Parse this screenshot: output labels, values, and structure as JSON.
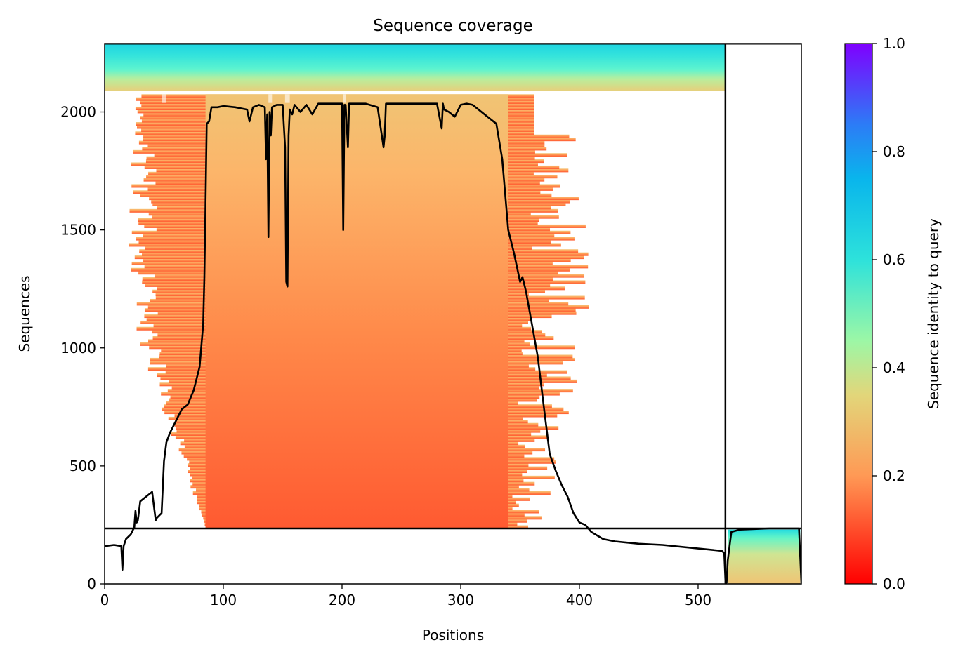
{
  "chart_data": {
    "type": "heatmap",
    "title": "Sequence coverage",
    "xlabel": "Positions",
    "ylabel": "Sequences",
    "xlim": [
      0,
      587
    ],
    "ylim": [
      0,
      2290
    ],
    "x_ticks": [
      0,
      100,
      200,
      300,
      400,
      500
    ],
    "y_ticks": [
      0,
      500,
      1000,
      1500,
      2000
    ],
    "colorbar": {
      "label": "Sequence identity to query",
      "colormap": "rainbow_r",
      "range": [
        0,
        1
      ],
      "ticks": [
        "0.0",
        "0.2",
        "0.4",
        "0.6",
        "0.8",
        "1.0"
      ]
    },
    "segment_boundary_x": 523,
    "segment_boundary_y": 235,
    "coverage_line": {
      "name": "coverage",
      "color": "#000000",
      "x": [
        0,
        8,
        14,
        15,
        16,
        18,
        22,
        25,
        26,
        27,
        28,
        30,
        35,
        40,
        43,
        44,
        48,
        50,
        52,
        55,
        60,
        65,
        70,
        75,
        80,
        83,
        84,
        85,
        86,
        88,
        90,
        95,
        100,
        110,
        120,
        122,
        125,
        130,
        135,
        136,
        137,
        138,
        139,
        140,
        141,
        145,
        150,
        152,
        153,
        154,
        155,
        156,
        158,
        160,
        165,
        170,
        175,
        180,
        190,
        200,
        201,
        202,
        203,
        205,
        206,
        210,
        220,
        230,
        235,
        236,
        237,
        240,
        250,
        260,
        270,
        280,
        284,
        285,
        286,
        290,
        295,
        300,
        305,
        310,
        320,
        330,
        335,
        340,
        345,
        350,
        352,
        355,
        360,
        365,
        370,
        375,
        380,
        385,
        390,
        395,
        400,
        405,
        410,
        420,
        430,
        450,
        470,
        500,
        520,
        522,
        523,
        524,
        525,
        528,
        535,
        560,
        585,
        587
      ],
      "y": [
        160,
        165,
        160,
        60,
        160,
        190,
        210,
        240,
        310,
        260,
        270,
        350,
        370,
        390,
        270,
        280,
        300,
        520,
        600,
        640,
        690,
        740,
        760,
        820,
        920,
        1100,
        1300,
        1600,
        1950,
        1960,
        2020,
        2020,
        2025,
        2020,
        2010,
        1960,
        2020,
        2030,
        2020,
        1800,
        1990,
        1470,
        2000,
        1900,
        2020,
        2030,
        2030,
        1850,
        1280,
        1260,
        1900,
        2010,
        1990,
        2030,
        2000,
        2030,
        1990,
        2035,
        2035,
        2035,
        1500,
        2030,
        2030,
        1850,
        2035,
        2035,
        2035,
        2020,
        1850,
        1900,
        2035,
        2035,
        2035,
        2035,
        2035,
        2035,
        1930,
        2035,
        2010,
        2000,
        1980,
        2030,
        2035,
        2030,
        1990,
        1950,
        1800,
        1500,
        1400,
        1280,
        1300,
        1240,
        1100,
        960,
        750,
        550,
        480,
        420,
        370,
        300,
        260,
        250,
        220,
        190,
        180,
        170,
        165,
        150,
        140,
        130,
        20,
        5,
        100,
        220,
        230,
        235,
        235,
        5
      ]
    },
    "msa_blocks": {
      "background_color": "#ffffff",
      "bottom_colors": [
        "#ff5a31",
        "#ff8a4a",
        "#fcb56a",
        "#f0c474"
      ],
      "top_colors": [
        "#f0c474",
        "#b9ee9d",
        "#5ef4cf",
        "#1fd4e2"
      ],
      "right_block_colors": [
        "#f0c474",
        "#cfe593",
        "#63f5c7",
        "#25dce0"
      ]
    }
  }
}
